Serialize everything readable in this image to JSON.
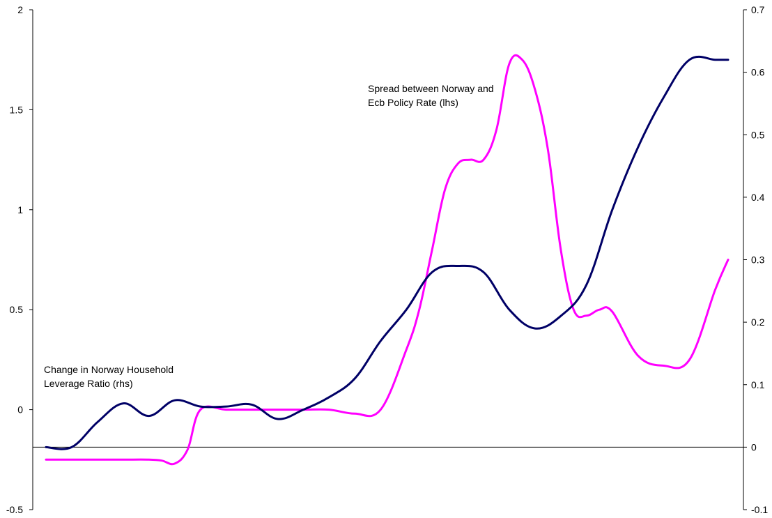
{
  "chart_data": {
    "type": "line",
    "title": "",
    "xlabel": "",
    "ylabel": "",
    "y_left": {
      "ticks": [
        "2",
        "1.5",
        "1",
        "0.5",
        "0",
        "-0.5"
      ],
      "lim": [
        -0.5,
        2
      ]
    },
    "y_right": {
      "ticks": [
        "0.7",
        "0.6",
        "0.5",
        "0.4",
        "0.3",
        "0.2",
        "0.1",
        "0",
        "-0.1"
      ],
      "lim": [
        -0.1,
        0.7
      ]
    },
    "grid": false,
    "legend": "none",
    "x_index_range": [
      0,
      53
    ],
    "series": [
      {
        "axis": "right",
        "color": "#000066",
        "x": [
          0,
          2,
          4,
          6,
          8,
          10,
          12,
          14,
          16,
          18,
          20,
          22,
          24,
          26,
          28,
          30,
          32,
          34,
          36,
          38,
          40,
          42,
          44,
          46,
          48,
          50,
          52,
          53
        ],
        "values": [
          0.0,
          0.0,
          0.04,
          0.07,
          0.05,
          0.075,
          0.065,
          0.065,
          0.068,
          0.045,
          0.06,
          0.08,
          0.11,
          0.17,
          0.22,
          0.28,
          0.29,
          0.28,
          0.22,
          0.19,
          0.21,
          0.26,
          0.38,
          0.48,
          0.56,
          0.62,
          0.62,
          0.62
        ]
      },
      {
        "axis": "left",
        "color": "#FF00FF",
        "x": [
          0,
          2,
          4,
          6,
          8,
          9,
          10,
          11,
          12,
          14,
          16,
          18,
          20,
          22,
          24,
          26,
          28,
          29,
          30,
          31,
          32,
          33,
          34,
          35,
          36,
          37,
          38,
          39,
          40,
          41,
          42,
          43,
          44,
          46,
          48,
          50,
          52,
          53
        ],
        "values": [
          -0.25,
          -0.25,
          -0.25,
          -0.25,
          -0.25,
          -0.255,
          -0.27,
          -0.2,
          0.0,
          0.0,
          0.0,
          0.0,
          0.0,
          0.0,
          -0.02,
          0.0,
          0.3,
          0.5,
          0.8,
          1.1,
          1.23,
          1.25,
          1.25,
          1.4,
          1.73,
          1.75,
          1.6,
          1.3,
          0.8,
          0.5,
          0.47,
          0.5,
          0.49,
          0.27,
          0.22,
          0.25,
          0.6,
          0.75
        ]
      }
    ],
    "annotations": [
      {
        "lines": [
          "Spread between Norway and",
          "Ecb Policy Rate (lhs)"
        ]
      },
      {
        "lines": [
          "Change in Norway Household",
          "Leverage Ratio (rhs)"
        ]
      }
    ]
  }
}
